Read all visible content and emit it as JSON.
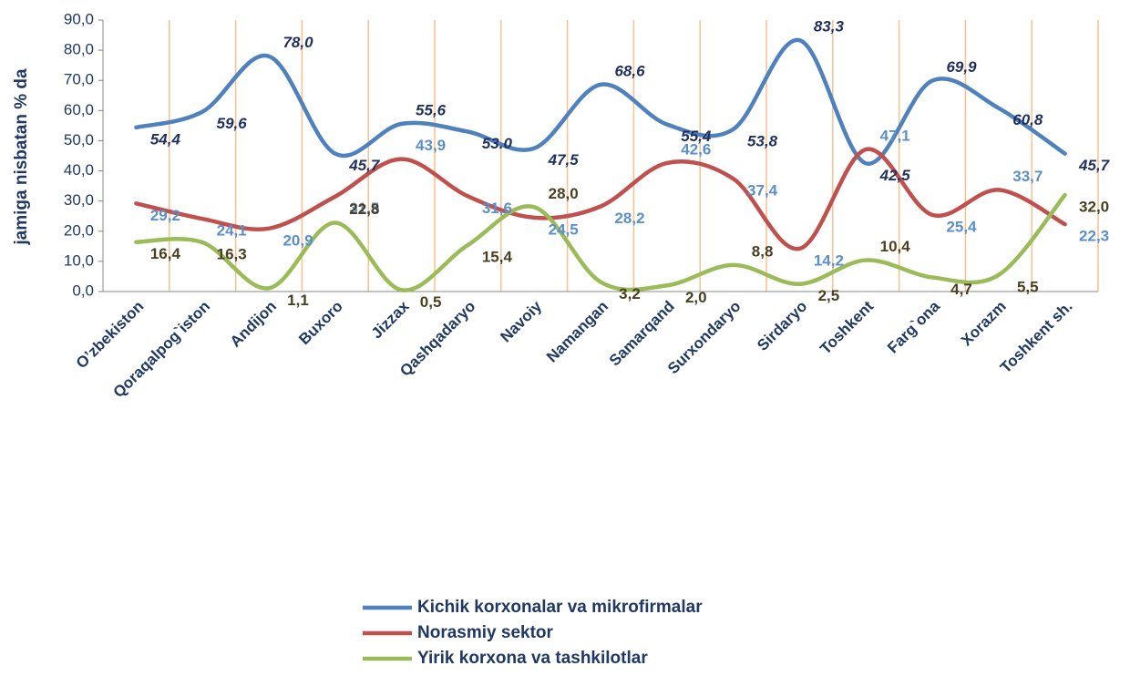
{
  "chart_data": {
    "type": "line",
    "ylabel": "jamiga nisbatan % da",
    "categories": [
      "O’zbekiston",
      "Qoraqalpog`iston",
      "Andijon",
      "Buxoro",
      "Jizzax",
      "Qashqadaryo",
      "Navoiy",
      "Namangan",
      "Samarqand",
      "Surxondaryo",
      "Sirdaryo",
      "Toshkent",
      "Farg`ona",
      "Xorazm",
      "Toshkent sh."
    ],
    "series": [
      {
        "name": "Kichik korxonalar va mikrofirmalar",
        "color": "#4f81bd",
        "label_color": "#1f2f5f",
        "values": [
          54.4,
          59.6,
          78.0,
          45.7,
          55.6,
          53.0,
          47.5,
          68.6,
          55.4,
          53.8,
          83.3,
          42.5,
          69.9,
          60.8,
          45.7
        ],
        "value_labels": [
          "54,4",
          "59,6",
          "78,0",
          "45,7",
          "55,6",
          "53.0",
          "47,5",
          "68,6",
          "55,4",
          "53,8",
          "83,3",
          "42,5",
          "69,9",
          "60,8",
          "45,7"
        ]
      },
      {
        "name": "Norasmiy sektor",
        "color": "#c0504d",
        "label_color": "#5b8fcb",
        "values": [
          29.2,
          24.1,
          20.9,
          31.5,
          43.9,
          31.6,
          24.5,
          28.2,
          42.6,
          37.4,
          14.2,
          47.1,
          25.4,
          33.7,
          22.3
        ],
        "value_labels": [
          "29,2",
          "24,1",
          "20,9",
          "31,5",
          "43,9",
          "31,6",
          "24,5",
          "28,2",
          "42,6",
          "37,4",
          "14,2",
          "47,1",
          "25,4",
          "33,7",
          "22,3"
        ]
      },
      {
        "name": "Yirik korxona va tashkilotlar",
        "color": "#9bbb59",
        "label_color": "#4a3f1f",
        "values": [
          16.4,
          16.3,
          1.1,
          22.8,
          0.5,
          15.4,
          28.0,
          3.2,
          2.0,
          8.8,
          2.5,
          10.4,
          4.7,
          5.5,
          32.0
        ],
        "value_labels": [
          "16,4",
          "16,3",
          "1,1",
          "22,8",
          "0,5",
          "15,4",
          "28,0",
          "3,2",
          "2,0",
          "8,8",
          "2,5",
          "10,4",
          "4,7",
          "5,5",
          "32,0"
        ]
      }
    ],
    "ylim": [
      0,
      90
    ],
    "yticks": [
      {
        "value": 0,
        "label": "0,0"
      },
      {
        "value": 10,
        "label": "10,0"
      },
      {
        "value": 20,
        "label": "20,0"
      },
      {
        "value": 30,
        "label": "30,0"
      },
      {
        "value": 40,
        "label": "40,0"
      },
      {
        "value": 50,
        "label": "50,0"
      },
      {
        "value": 60,
        "label": "60,0"
      },
      {
        "value": 70,
        "label": "70,0"
      },
      {
        "value": 80,
        "label": "80,0"
      },
      {
        "value": 90,
        "label": "90,0"
      }
    ],
    "vertical_grid": true,
    "grid_color": "#f9c08f",
    "smooth": true,
    "legend": "bottom"
  }
}
